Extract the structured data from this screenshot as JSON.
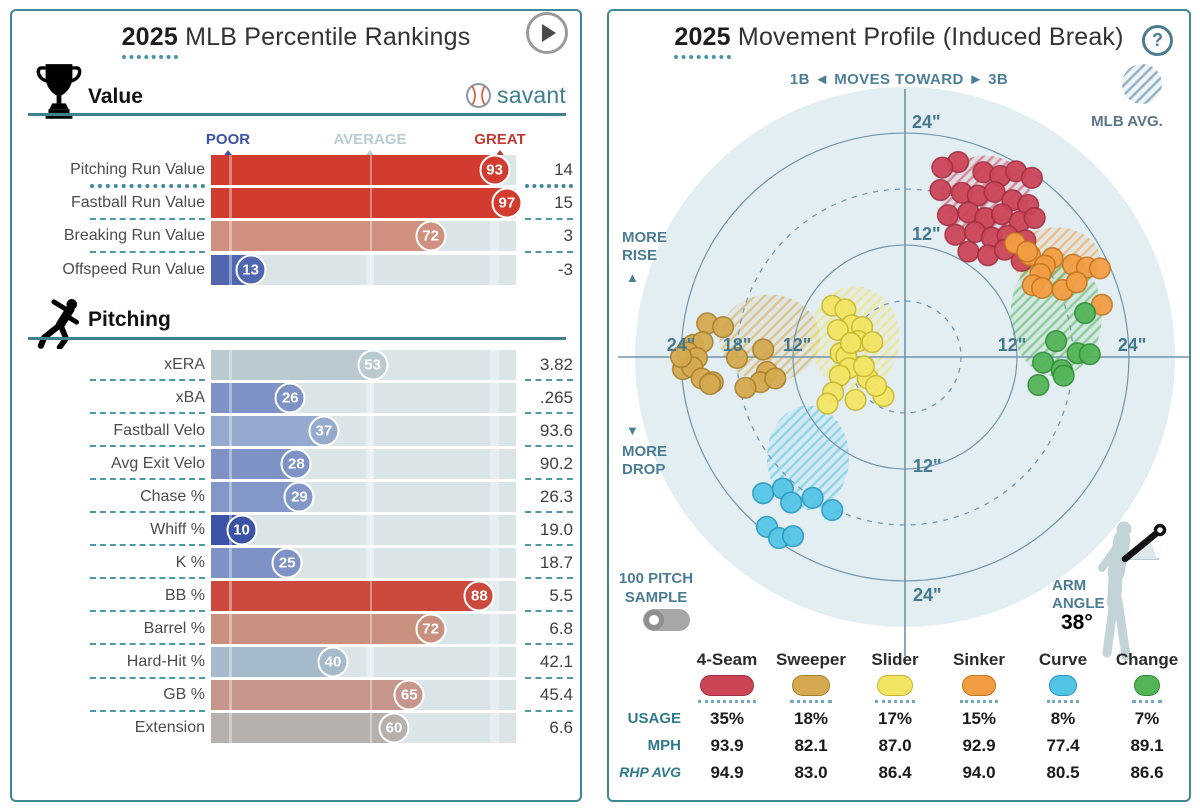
{
  "accent": {
    "teal": "#3e8793",
    "steel": "#4a7c94",
    "poor": "#3a53a4",
    "average": "#b9ccd4",
    "great": "#c23b33"
  },
  "left_panel": {
    "title": {
      "year": "2025",
      "rest": "MLB Percentile Rankings"
    },
    "scale": {
      "poor": "POOR",
      "average": "AVERAGE",
      "great": "GREAT"
    },
    "savant_label": "savant"
  },
  "right_panel": {
    "title": {
      "year": "2025",
      "rest": "Movement Profile (Induced Break)"
    },
    "help_label": "?",
    "toward": {
      "left": "1B",
      "arrow_left": "◄",
      "center": "MOVES TOWARD",
      "arrow_right": "►",
      "right": "3B"
    },
    "mlb_avg_label": "MLB AVG.",
    "more_rise": "MORE RISE",
    "more_drop": "MORE DROP",
    "rise_arrow": "▲",
    "drop_arrow": "▼",
    "sample_line1": "100 PITCH",
    "sample_line2": "SAMPLE",
    "arm_label_line1": "ARM",
    "arm_label_line2": "ANGLE",
    "arm_angle_value": "38°",
    "legend_row_labels": [
      "USAGE",
      "MPH",
      "RHP AVG"
    ]
  },
  "chart_data": [
    {
      "type": "bar",
      "title": "2025 MLB Percentile Rankings",
      "unit": "percentile (0-100)",
      "scale_markers": [
        "POOR",
        "AVERAGE",
        "GREAT"
      ],
      "sections": [
        {
          "name": "Value",
          "icon": "trophy-icon",
          "rows": [
            {
              "label": "Pitching Run Value",
              "percentile": 93,
              "value": "14",
              "color": "#d23b30",
              "sep": "dotted"
            },
            {
              "label": "Fastball Run Value",
              "percentile": 97,
              "value": "15",
              "color": "#d23b30",
              "sep": "dashed"
            },
            {
              "label": "Breaking Run Value",
              "percentile": 72,
              "value": "3",
              "color": "#d0907f",
              "sep": "dashed"
            },
            {
              "label": "Offspeed Run Value",
              "percentile": 13,
              "value": "-3",
              "color": "#5066ae",
              "sep": null
            }
          ]
        },
        {
          "name": "Pitching",
          "icon": "pitcher-icon",
          "rows": [
            {
              "label": "xERA",
              "percentile": 53,
              "value": "3.82",
              "color": "#b9cad0",
              "sep": "dashed"
            },
            {
              "label": "xBA",
              "percentile": 26,
              "value": ".265",
              "color": "#7e92c5",
              "sep": "dashed"
            },
            {
              "label": "Fastball Velo",
              "percentile": 37,
              "value": "93.6",
              "color": "#95aace",
              "sep": "dashed"
            },
            {
              "label": "Avg Exit Velo",
              "percentile": 28,
              "value": "90.2",
              "color": "#7e92c5",
              "sep": "dashed"
            },
            {
              "label": "Chase %",
              "percentile": 29,
              "value": "26.3",
              "color": "#8296c7",
              "sep": "dashed"
            },
            {
              "label": "Whiff %",
              "percentile": 10,
              "value": "19.0",
              "color": "#3a53a4",
              "sep": "dashed"
            },
            {
              "label": "K %",
              "percentile": 25,
              "value": "18.7",
              "color": "#7e92c5",
              "sep": "dashed"
            },
            {
              "label": "BB %",
              "percentile": 88,
              "value": "5.5",
              "color": "#cc4a3d",
              "sep": "dashed"
            },
            {
              "label": "Barrel %",
              "percentile": 72,
              "value": "6.8",
              "color": "#c9907f",
              "sep": "dashed"
            },
            {
              "label": "Hard-Hit %",
              "percentile": 40,
              "value": "42.1",
              "color": "#a5bbcb",
              "sep": "dashed"
            },
            {
              "label": "GB %",
              "percentile": 65,
              "value": "45.4",
              "color": "#c6958c",
              "sep": "dashed"
            },
            {
              "label": "Extension",
              "percentile": 60,
              "value": "6.6",
              "color": "#b6b1ac",
              "sep": null
            }
          ]
        }
      ]
    },
    {
      "type": "scatter",
      "title": "2025 Movement Profile (Induced Break)",
      "units": "inches",
      "x_axis": "horizontal break (1B ← → 3B)",
      "y_axis": "induced vertical break (rise + / drop -)",
      "rings_inches": [
        6,
        12,
        18,
        24
      ],
      "solid_rings": [
        12,
        24
      ],
      "dashed_rings": [
        6,
        18
      ],
      "ticks": {
        "vertical_top": [
          "24\"",
          "12\""
        ],
        "vertical_bottom": [
          "12\"",
          "24\""
        ],
        "horizontal_left": [
          "24\"",
          "18\"",
          "12\""
        ],
        "horizontal_right": [
          "12\"",
          "24\""
        ]
      },
      "arm_angle_deg": 38,
      "pitches": [
        {
          "name": "4-Seam",
          "usage": "35%",
          "usage_num": 35,
          "mph": "93.9",
          "rhp_avg": "94.9",
          "color": "#cb4557",
          "stroke": "#9e2f40",
          "mlb_avg_ellipse": {
            "x": 8.6,
            "z": 17.3,
            "rx": 4.8,
            "ry": 4.3
          },
          "dots": [
            [
              5.7,
              20.9
            ],
            [
              8.4,
              19.8
            ],
            [
              10.2,
              19.4
            ],
            [
              11.9,
              19.9
            ],
            [
              13.6,
              19.2
            ],
            [
              3.8,
              17.9
            ],
            [
              6.1,
              17.6
            ],
            [
              7.8,
              17.3
            ],
            [
              9.6,
              17.7
            ],
            [
              11.5,
              16.8
            ],
            [
              13.2,
              16.3
            ],
            [
              4.6,
              15.2
            ],
            [
              6.8,
              15.5
            ],
            [
              8.6,
              14.9
            ],
            [
              10.4,
              15.3
            ],
            [
              12.3,
              14.5
            ],
            [
              13.9,
              14.9
            ],
            [
              5.4,
              13.1
            ],
            [
              7.5,
              13.4
            ],
            [
              9.3,
              12.8
            ],
            [
              11.0,
              13.0
            ],
            [
              12.9,
              12.5
            ],
            [
              6.8,
              11.3
            ],
            [
              8.9,
              10.9
            ],
            [
              10.7,
              11.5
            ],
            [
              4.0,
              20.3
            ],
            [
              12.5,
              10.3
            ]
          ]
        },
        {
          "name": "Sweeper",
          "usage": "18%",
          "usage_num": 18,
          "mph": "82.1",
          "rhp_avg": "83.0",
          "color": "#d4a94f",
          "stroke": "#a57d2c",
          "mlb_avg_ellipse": {
            "x": -14.5,
            "z": 2.0,
            "rx": 5.4,
            "ry": 4.7
          },
          "dots": [
            [
              -21.2,
              3.6
            ],
            [
              -19.5,
              3.2
            ],
            [
              -22.7,
              1.3
            ],
            [
              -21.7,
              1.6
            ],
            [
              -23.3,
              0.5
            ],
            [
              -22.3,
              -0.1
            ],
            [
              -23.8,
              -1.3
            ],
            [
              -22.8,
              -1.1
            ],
            [
              -21.8,
              -2.3
            ],
            [
              -20.6,
              -2.7
            ],
            [
              -15.2,
              0.8
            ],
            [
              -18.0,
              -0.1
            ],
            [
              -14.8,
              -1.6
            ],
            [
              -15.5,
              -2.7
            ],
            [
              -17.1,
              -3.3
            ],
            [
              -13.9,
              -2.3
            ],
            [
              -20.9,
              -2.9
            ],
            [
              -24.0,
              0.0
            ]
          ]
        },
        {
          "name": "Slider",
          "usage": "17%",
          "usage_num": 17,
          "mph": "87.0",
          "rhp_avg": "86.4",
          "color": "#f2e463",
          "stroke": "#c4b52e",
          "mlb_avg_ellipse": {
            "x": -5.4,
            "z": 2.0,
            "rx": 4.8,
            "ry": 5.6
          },
          "dots": [
            [
              -7.8,
              5.5
            ],
            [
              -6.4,
              5.1
            ],
            [
              -5.7,
              3.4
            ],
            [
              -4.6,
              3.2
            ],
            [
              -5.0,
              1.7
            ],
            [
              -3.5,
              1.6
            ],
            [
              -6.9,
              0.4
            ],
            [
              -6.3,
              0.1
            ],
            [
              -6.0,
              -1.2
            ],
            [
              -7.0,
              -2.0
            ],
            [
              -4.0,
              -2.3
            ],
            [
              -5.3,
              -4.6
            ],
            [
              -7.7,
              -3.8
            ],
            [
              -8.3,
              -5.0
            ],
            [
              -2.3,
              -4.2
            ],
            [
              -4.4,
              -1.0
            ],
            [
              -7.2,
              2.9
            ],
            [
              -5.8,
              1.5
            ],
            [
              -3.1,
              -3.1
            ]
          ]
        },
        {
          "name": "Sinker",
          "usage": "15%",
          "usage_num": 15,
          "mph": "92.9",
          "rhp_avg": "94.0",
          "color": "#f29d42",
          "stroke": "#c1731d",
          "mlb_avg_ellipse": {
            "x": 16.2,
            "z": 10.5,
            "rx": 4.7,
            "ry": 3.4
          },
          "dots": [
            [
              11.8,
              12.2
            ],
            [
              13.4,
              10.9
            ],
            [
              15.8,
              10.6
            ],
            [
              15.0,
              9.8
            ],
            [
              18.0,
              9.9
            ],
            [
              19.5,
              9.6
            ],
            [
              20.9,
              9.5
            ],
            [
              14.5,
              8.9
            ],
            [
              13.7,
              7.7
            ],
            [
              14.7,
              7.4
            ],
            [
              16.9,
              7.2
            ],
            [
              18.4,
              8.0
            ],
            [
              21.1,
              5.6
            ],
            [
              13.1,
              11.3
            ]
          ]
        },
        {
          "name": "Curve",
          "usage": "8%",
          "usage_num": 8,
          "mph": "77.4",
          "rhp_avg": "80.5",
          "color": "#54c4e6",
          "stroke": "#2795bd",
          "mlb_avg_ellipse": {
            "x": -10.4,
            "z": -10.8,
            "rx": 4.4,
            "ry": 5.6
          },
          "dots": [
            [
              -15.2,
              -14.6
            ],
            [
              -13.1,
              -14.1
            ],
            [
              -12.2,
              -15.6
            ],
            [
              -9.9,
              -15.1
            ],
            [
              -7.8,
              -16.4
            ],
            [
              -14.8,
              -18.2
            ],
            [
              -13.5,
              -19.4
            ],
            [
              -12.0,
              -19.2
            ]
          ]
        },
        {
          "name": "Change",
          "usage": "7%",
          "usage_num": 7,
          "mph": "89.1",
          "rhp_avg": "86.6",
          "color": "#53b457",
          "stroke": "#2f8a36",
          "mlb_avg_ellipse": {
            "x": 16.2,
            "z": 4.5,
            "rx": 4.9,
            "ry": 6.6
          },
          "dots": [
            [
              19.3,
              4.7
            ],
            [
              16.2,
              1.7
            ],
            [
              18.5,
              0.4
            ],
            [
              14.8,
              -0.6
            ],
            [
              19.8,
              0.3
            ],
            [
              16.8,
              -1.4
            ],
            [
              14.3,
              -3.0
            ],
            [
              17.0,
              -2.0
            ]
          ]
        }
      ]
    }
  ]
}
